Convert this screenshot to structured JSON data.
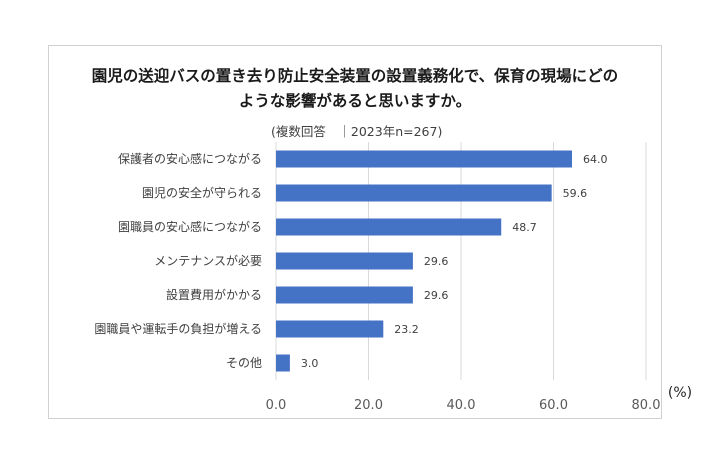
{
  "chart_data": {
    "type": "bar",
    "orientation": "horizontal",
    "title_lines": [
      "園児の送迎バスの置き去り防止安全装置の設置義務化で、保育の現場にどの",
      "ような影響があると思いますか。"
    ],
    "subtitle": "(複数回答　｜2023年n=267)",
    "unit": "(%)",
    "categories": [
      "保護者の安心感につながる",
      "園児の安全が守られる",
      "園職員の安心感につながる",
      "メンテナンスが必要",
      "設置費用がかかる",
      "園職員や運転手の負担が増える",
      "その他"
    ],
    "values": [
      64.0,
      59.6,
      48.7,
      29.6,
      29.6,
      23.2,
      3.0
    ],
    "value_labels": [
      "64.0",
      "59.6",
      "48.7",
      "29.6",
      "29.6",
      "23.2",
      "3.0"
    ],
    "x_ticks": [
      "0.0",
      "20.0",
      "40.0",
      "60.0",
      "80.0"
    ],
    "xlim": [
      0,
      80
    ],
    "grid": "vertical",
    "bar_color": "#4472c4",
    "grid_color": "#d9d9d9"
  }
}
